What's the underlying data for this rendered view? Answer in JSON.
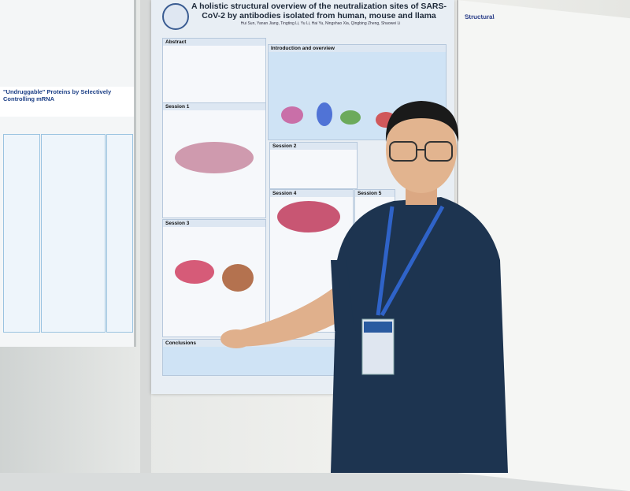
{
  "scene": {
    "description_type": "photo",
    "colors": {
      "shirt": "#1d3450",
      "lanyard": "#2f63c8",
      "poster_accent": "#2a5aa0"
    }
  },
  "main_poster": {
    "title": "A holistic structural overview of the neutralization sites of SARS-CoV-2 by antibodies isolated from human, mouse and llama",
    "authors": "Hui Sun, Yanan Jiang, Tingting Li, Yu Li, Hai Yu, Ningshao Xia, Qingbing Zheng, Shaowei Li",
    "sections": [
      "Abstract",
      "Introduction and overview",
      "Session 1",
      "Session 2",
      "Session 3",
      "Session 4",
      "Session 5",
      "Conclusions"
    ]
  },
  "left_poster": {
    "title_fragment": "\"Undruggable\" Proteins by Selectively Controlling mRNA"
  },
  "right_poster": {
    "title_fragment": "Structural"
  }
}
